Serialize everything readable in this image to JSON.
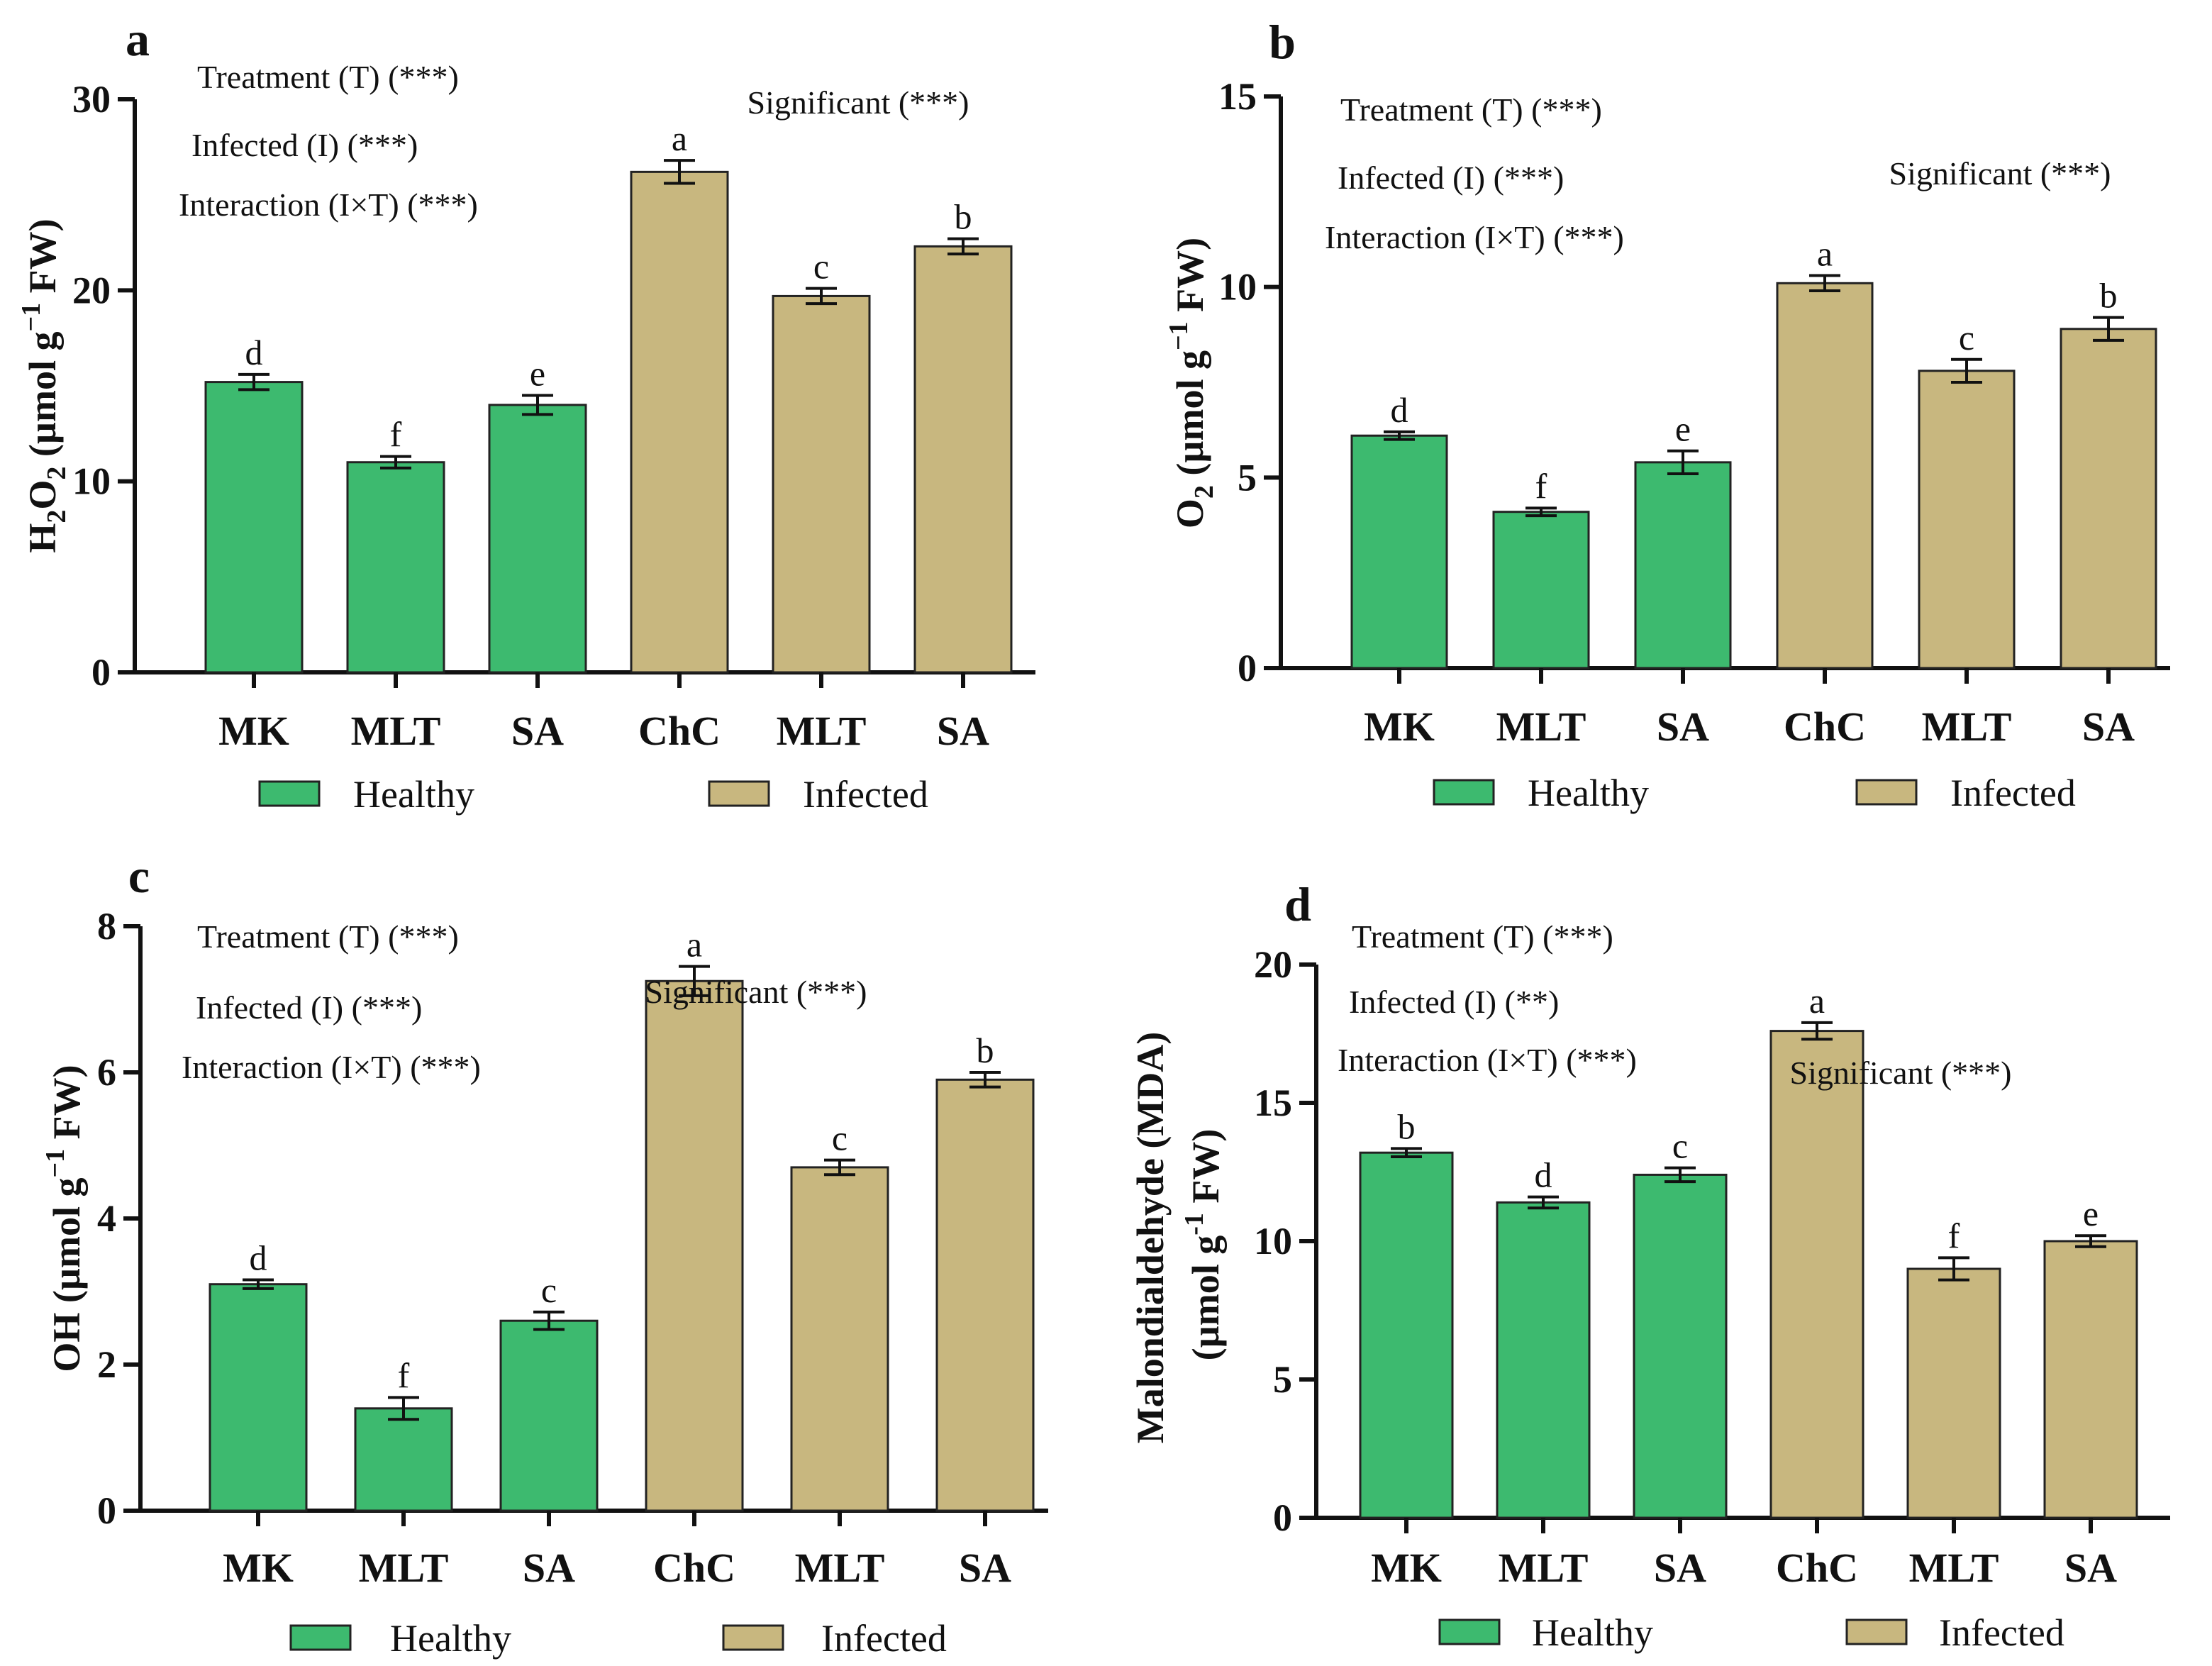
{
  "colors": {
    "healthy": "#3dba6f",
    "infected": "#c8b77f"
  },
  "legend": {
    "healthy": "Healthy",
    "infected": "Infected"
  },
  "chart_data": [
    {
      "type": "bar",
      "panel": "a",
      "ylabel_main": "H",
      "ylabel_parts": [
        "H",
        "2",
        "O",
        "2",
        " (µmol g",
        "−1",
        " FW)"
      ],
      "ylim": [
        0,
        30
      ],
      "yticks": [
        0,
        10,
        20,
        30
      ],
      "categories": [
        "MK",
        "MLT",
        "SA",
        "ChC",
        "MLT",
        "SA"
      ],
      "groups": [
        "Healthy",
        "Healthy",
        "Healthy",
        "Infected",
        "Infected",
        "Infected"
      ],
      "values": [
        15.2,
        11.0,
        14.0,
        26.2,
        19.7,
        22.3
      ],
      "errors": [
        0.4,
        0.3,
        0.5,
        0.6,
        0.4,
        0.4
      ],
      "letters": [
        "d",
        "f",
        "e",
        "a",
        "c",
        "b"
      ],
      "stats": [
        "Treatment (T) (***)",
        "Infected (I) (***)",
        "Interaction (I×T) (***)"
      ],
      "significance": "Significant (***)"
    },
    {
      "type": "bar",
      "panel": "b",
      "ylabel_parts": [
        "O",
        "2",
        " (µmol g",
        "−1",
        " FW)"
      ],
      "ylim": [
        0,
        15
      ],
      "yticks": [
        0,
        5,
        10,
        15
      ],
      "categories": [
        "MK",
        "MLT",
        "SA",
        "ChC",
        "MLT",
        "SA"
      ],
      "groups": [
        "Healthy",
        "Healthy",
        "Healthy",
        "Infected",
        "Infected",
        "Infected"
      ],
      "values": [
        6.1,
        4.1,
        5.4,
        10.1,
        7.8,
        8.9
      ],
      "errors": [
        0.1,
        0.1,
        0.3,
        0.2,
        0.3,
        0.3
      ],
      "letters": [
        "d",
        "f",
        "e",
        "a",
        "c",
        "b"
      ],
      "stats": [
        "Treatment (T) (***)",
        "Infected (I) (***)",
        "Interaction (I×T) (***)"
      ],
      "significance": "Significant (***)"
    },
    {
      "type": "bar",
      "panel": "c",
      "ylabel_parts": [
        "OH (µmol g",
        "−1",
        " FW)"
      ],
      "ylim": [
        0,
        8
      ],
      "yticks": [
        0,
        2,
        4,
        6,
        8
      ],
      "categories": [
        "MK",
        "MLT",
        "SA",
        "ChC",
        "MLT",
        "SA"
      ],
      "groups": [
        "Healthy",
        "Healthy",
        "Healthy",
        "Infected",
        "Infected",
        "Infected"
      ],
      "values": [
        3.1,
        1.4,
        2.6,
        7.25,
        4.7,
        5.9
      ],
      "errors": [
        0.06,
        0.15,
        0.12,
        0.2,
        0.1,
        0.1
      ],
      "letters": [
        "d",
        "f",
        "c",
        "a",
        "c",
        "b"
      ],
      "stats": [
        "Treatment (T) (***)",
        "Infected (I) (***)",
        "Interaction (I×T) (***)"
      ],
      "significance": "Significant (***)"
    },
    {
      "type": "bar",
      "panel": "d",
      "ylabel_line1": "Malondialdehyde (MDA)",
      "ylabel_parts": [
        "(µmol  g",
        "-1",
        " FW)"
      ],
      "ylim": [
        0,
        20
      ],
      "yticks": [
        0,
        5,
        10,
        15,
        20
      ],
      "categories": [
        "MK",
        "MLT",
        "SA",
        "ChC",
        "MLT",
        "SA"
      ],
      "groups": [
        "Healthy",
        "Healthy",
        "Healthy",
        "Infected",
        "Infected",
        "Infected"
      ],
      "values": [
        13.2,
        11.4,
        12.4,
        17.6,
        9.0,
        10.0
      ],
      "errors": [
        0.15,
        0.2,
        0.25,
        0.3,
        0.4,
        0.2
      ],
      "letters": [
        "b",
        "d",
        "c",
        "a",
        "f",
        "e"
      ],
      "stats": [
        "Treatment (T) (***)",
        "Infected (I) (**)",
        "Interaction (I×T) (***)"
      ],
      "significance": "Significant (***)"
    }
  ]
}
